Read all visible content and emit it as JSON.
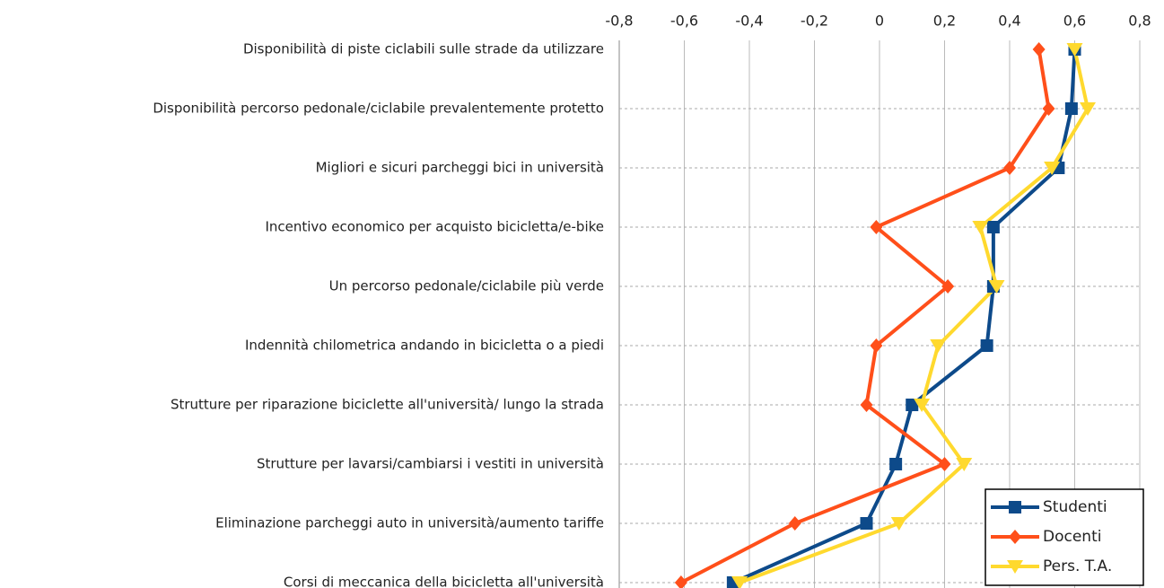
{
  "chart_data": {
    "type": "line",
    "orientation": "horizontal",
    "categories": [
      "Disponibilità di piste ciclabili sulle strade da utilizzare",
      "Disponibilità percorso pedonale/ciclabile prevalentemente protetto",
      "Migliori e sicuri parcheggi bici in università",
      "Incentivo economico per acquisto bicicletta/e-bike",
      "Un percorso pedonale/ciclabile più verde",
      "Indennità chilometrica andando in bicicletta o a piedi",
      "Strutture per riparazione biciclette all'università/ lungo la strada",
      "Strutture per lavarsi/cambiarsi i vestiti in università",
      "Eliminazione parcheggi auto in università/aumento tariffe",
      "Corsi di meccanica della bicicletta all'università"
    ],
    "series": [
      {
        "name": "Studenti",
        "color": "#0d4a8a",
        "marker": "square",
        "values": [
          0.6,
          0.59,
          0.55,
          0.35,
          0.35,
          0.33,
          0.1,
          0.05,
          -0.04,
          -0.45
        ]
      },
      {
        "name": "Docenti",
        "color": "#ff4f1a",
        "marker": "diamond",
        "values": [
          0.49,
          0.52,
          0.4,
          -0.01,
          0.21,
          -0.01,
          -0.04,
          0.2,
          -0.26,
          -0.61
        ]
      },
      {
        "name": "Pers. T.A.",
        "color": "#ffd92e",
        "marker": "triangle-down",
        "values": [
          0.6,
          0.64,
          0.53,
          0.31,
          0.36,
          0.18,
          0.13,
          0.26,
          0.06,
          -0.43
        ]
      }
    ],
    "xlim": [
      -0.8,
      0.8
    ],
    "xticks": [
      {
        "value": -0.8,
        "label": "-0,8"
      },
      {
        "value": -0.6,
        "label": "-0,6"
      },
      {
        "value": -0.4,
        "label": "-0,4"
      },
      {
        "value": -0.2,
        "label": "-0,2"
      },
      0,
      {
        "value": 0.2,
        "label": "0,2"
      },
      {
        "value": 0.4,
        "label": "0,4"
      },
      {
        "value": 0.6,
        "label": "0,6"
      },
      {
        "value": 0.8,
        "label": "0,8"
      }
    ],
    "grid": true,
    "legend": "lower right"
  }
}
